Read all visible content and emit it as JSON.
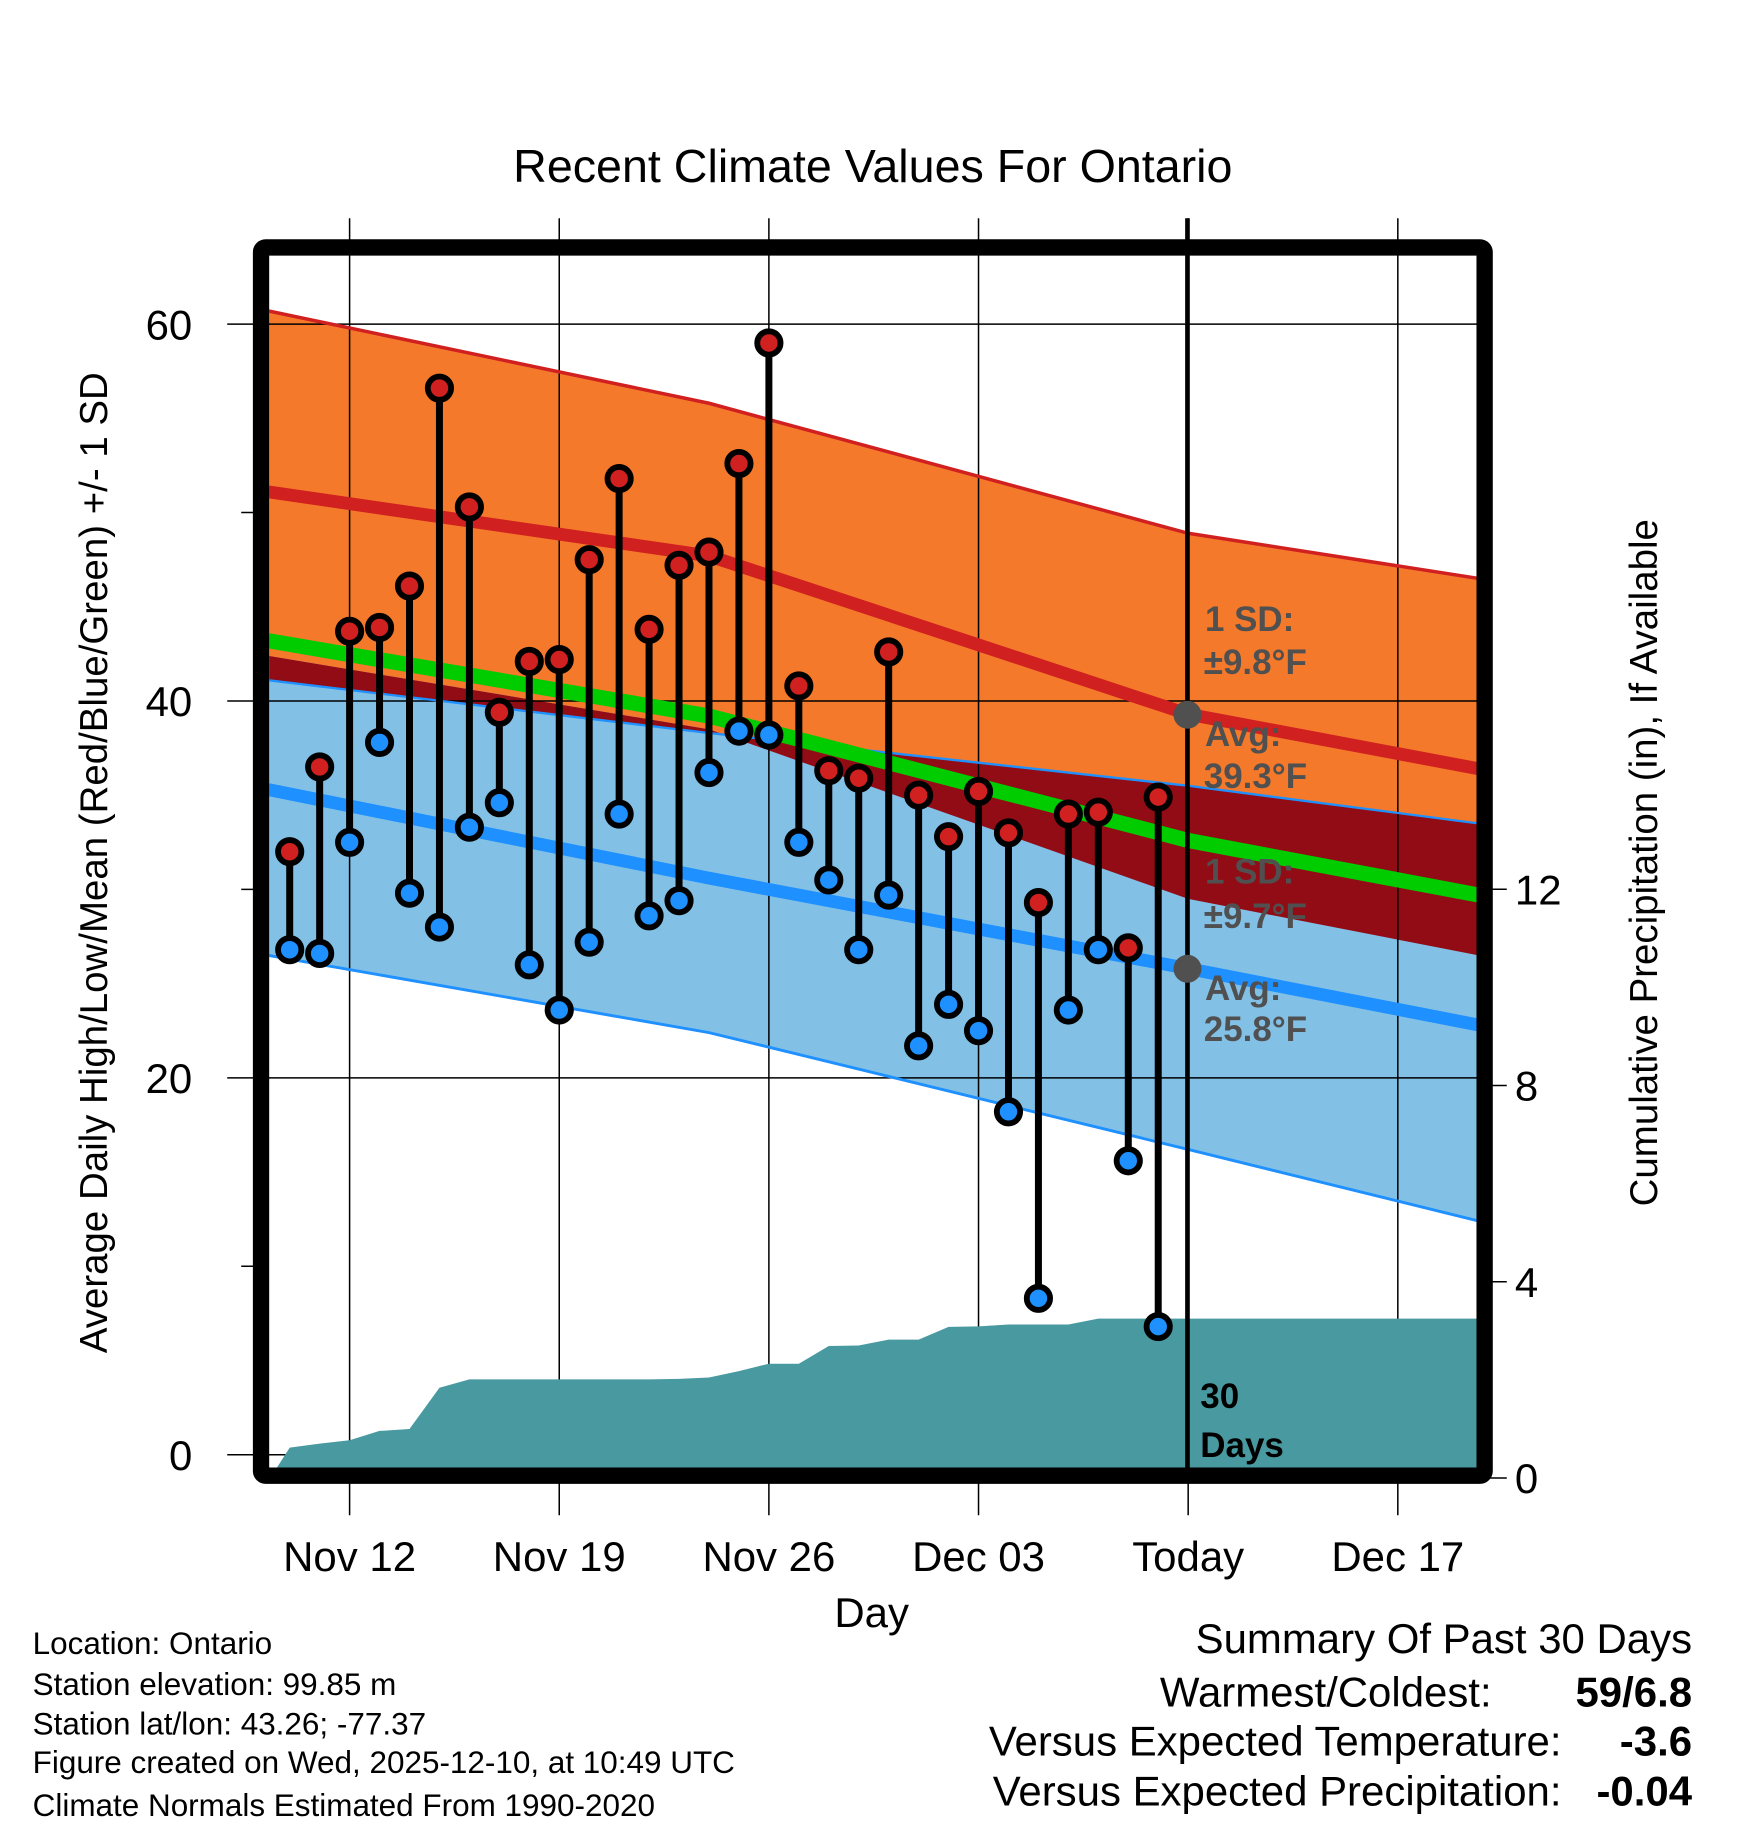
{
  "chart_data": {
    "type": "line",
    "title": "Recent Climate Values For Ontario",
    "xlabel": "Day",
    "ylabel": "Average Daily High/Low/Mean (Red/Blue/Green) +/- 1 SD",
    "y2label": "Cumulative Precipitation (in), If Available",
    "ylim": [
      -0.7,
      63.6
    ],
    "y2lim": [
      0,
      14.7
    ],
    "yticks": [
      "60",
      "40",
      "20",
      "0"
    ],
    "yticks_values": [
      60,
      40,
      20,
      0
    ],
    "y2ticks": [
      "12",
      "8",
      "4",
      "0"
    ],
    "y2ticks_values": [
      12,
      8,
      4,
      0
    ],
    "xticks": [
      "Nov 12",
      "Nov 19",
      "Nov 26",
      "Dec 03",
      "Today",
      "Dec 17"
    ],
    "xticks_day_index": [
      2,
      9,
      16,
      23,
      30,
      37
    ],
    "xlim_day_index": [
      -0.72,
      39.7
    ],
    "grid": true,
    "days": [
      "Nov 10",
      "Nov 11",
      "Nov 12",
      "Nov 13",
      "Nov 14",
      "Nov 15",
      "Nov 16",
      "Nov 17",
      "Nov 18",
      "Nov 19",
      "Nov 20",
      "Nov 21",
      "Nov 22",
      "Nov 23",
      "Nov 24",
      "Nov 25",
      "Nov 26",
      "Nov 27",
      "Nov 28",
      "Nov 29",
      "Nov 30",
      "Dec 01",
      "Dec 02",
      "Dec 03",
      "Dec 04",
      "Dec 05",
      "Dec 06",
      "Dec 07",
      "Dec 08",
      "Dec 09"
    ],
    "series": [
      {
        "name": "Daily High",
        "color": "#d42020",
        "values": [
          32.0,
          36.5,
          43.7,
          43.9,
          46.1,
          56.6,
          50.3,
          39.4,
          42.1,
          42.2,
          47.5,
          51.8,
          43.8,
          47.2,
          47.9,
          52.6,
          59.0,
          40.8,
          36.3,
          35.9,
          42.6,
          35.0,
          32.8,
          35.2,
          33.0,
          29.3,
          34.0,
          34.1,
          26.9,
          34.9
        ]
      },
      {
        "name": "Daily Low",
        "color": "#1e90ff",
        "values": [
          26.8,
          26.6,
          32.5,
          37.8,
          29.8,
          28.0,
          33.3,
          34.6,
          26.0,
          23.6,
          27.2,
          34.0,
          28.6,
          29.4,
          36.2,
          38.4,
          38.2,
          32.5,
          30.5,
          26.8,
          29.7,
          21.7,
          23.9,
          22.5,
          18.2,
          8.3,
          23.6,
          26.8,
          15.6,
          6.8
        ]
      },
      {
        "name": "Cumulative Precipitation",
        "color": "#4899a0",
        "values": [
          0.62,
          0.7,
          0.77,
          0.96,
          1.0,
          1.84,
          2.01,
          2.01,
          2.01,
          2.01,
          2.01,
          2.01,
          2.01,
          2.02,
          2.05,
          2.18,
          2.33,
          2.33,
          2.69,
          2.7,
          2.82,
          2.82,
          3.08,
          3.09,
          3.13,
          3.13,
          3.13,
          3.25,
          3.25,
          3.25
        ]
      }
    ],
    "normals": {
      "day_index": [
        -0.72,
        14,
        30,
        39.7
      ],
      "high_avg": [
        51.1,
        47.7,
        39.3,
        36.4
      ],
      "high_upper": [
        60.7,
        55.8,
        48.9,
        46.5
      ],
      "high_lower": [
        42.4,
        38.5,
        29.5,
        26.5
      ],
      "low_avg": [
        35.3,
        30.6,
        25.8,
        22.8
      ],
      "low_upper": [
        41.1,
        38.3,
        35.5,
        33.5
      ],
      "low_lower": [
        26.5,
        22.4,
        16.2,
        12.4
      ],
      "mean": [
        43.2,
        39.2,
        32.6,
        29.7
      ]
    },
    "colors": {
      "orange": "#f5792a",
      "lightblue": "#82c0e6",
      "darkred": "#910c14",
      "green": "#00cc00",
      "red": "#d02020",
      "blue": "#1e90ff",
      "precip": "#4899a0",
      "annot": "#505050"
    },
    "annotations": {
      "high_sd_line1": "1 SD:",
      "high_sd_line2": "±9.8°F",
      "high_avg_line1": "Avg:",
      "high_avg_line2": "39.3°F",
      "low_sd_line1": "1 SD:",
      "low_sd_line2": "±9.7°F",
      "low_avg_line1": "Avg:",
      "low_avg_line2": "25.8°F",
      "window_line1": "30",
      "window_line2": "Days"
    }
  },
  "footer": {
    "location": "Location: Ontario",
    "elevation": "Station elevation: 99.85 m",
    "latlon": "Station lat/lon: 43.26; -77.37",
    "created": "Figure created on Wed, 2025-12-10, at 10:49 UTC",
    "normals": "Climate Normals Estimated From 1990-2020"
  },
  "summary": {
    "title": "Summary Of Past 30 Days",
    "warmest_label": "Warmest/Coldest:",
    "warmest_value": "59/6.8",
    "temp_label": "Versus Expected Temperature:",
    "temp_value": "-3.6",
    "temp_color": "#1e90ff",
    "precip_label": "Versus Expected Precipitation:",
    "precip_value": "-0.04",
    "precip_color": "#a0522d"
  }
}
